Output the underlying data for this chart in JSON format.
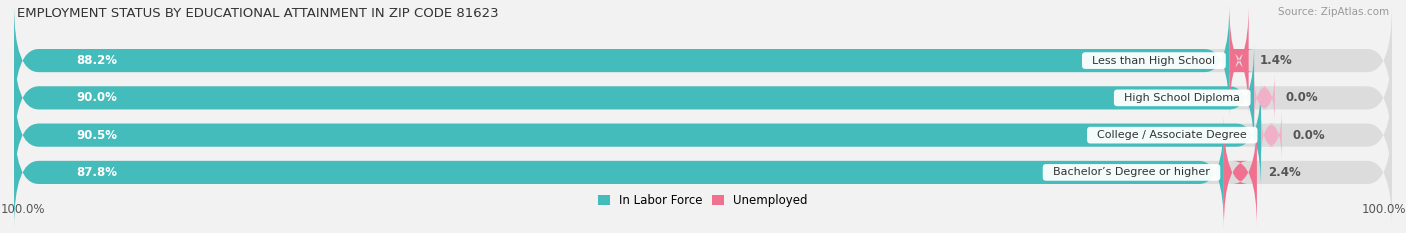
{
  "title": "EMPLOYMENT STATUS BY EDUCATIONAL ATTAINMENT IN ZIP CODE 81623",
  "source": "Source: ZipAtlas.com",
  "categories": [
    "Less than High School",
    "High School Diploma",
    "College / Associate Degree",
    "Bachelor’s Degree or higher"
  ],
  "labor_force_pct": [
    88.2,
    90.0,
    90.5,
    87.8
  ],
  "unemployed_pct": [
    1.4,
    0.0,
    0.0,
    2.4
  ],
  "labor_force_color": "#45BCBC",
  "unemployed_color": "#F07090",
  "bar_bg_color": "#DCDCDC",
  "background_color": "#F2F2F2",
  "axis_label_left": "100.0%",
  "axis_label_right": "100.0%",
  "bar_height": 0.62,
  "total_scale": 100.0,
  "label_pct_fontsize": 8.5,
  "cat_label_fontsize": 8.0,
  "title_fontsize": 9.5,
  "source_fontsize": 7.5,
  "legend_fontsize": 8.5
}
